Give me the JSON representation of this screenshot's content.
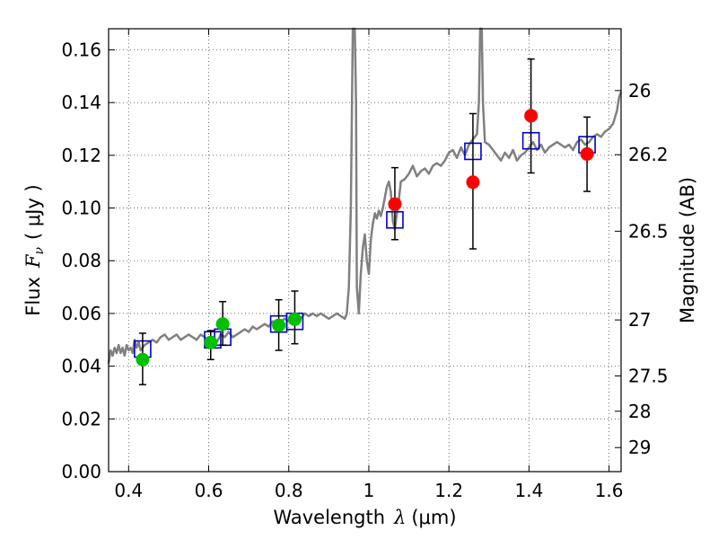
{
  "chart_data": {
    "type": "scatter",
    "xlabel_prefix": "Wavelength",
    "xlabel_symbol": "λ",
    "xlabel_unit": "(μm)",
    "ylabel_prefix": "Flux",
    "ylabel_symbol": "F",
    "ylabel_subscript": "ν",
    "ylabel_unit": "( μJy )",
    "y2label": "Magnitude (AB)",
    "xlim": [
      0.35,
      1.63
    ],
    "ylim": [
      0.0,
      0.168
    ],
    "grid": true,
    "xticks": [
      {
        "value": 0.4,
        "label": "0.4"
      },
      {
        "value": 0.6,
        "label": "0.6"
      },
      {
        "value": 0.8,
        "label": "0.8"
      },
      {
        "value": 1.0,
        "label": "1"
      },
      {
        "value": 1.2,
        "label": "1.2"
      },
      {
        "value": 1.4,
        "label": "1.4"
      },
      {
        "value": 1.6,
        "label": "1.6"
      }
    ],
    "yticks": [
      {
        "value": 0.0,
        "label": "0.00"
      },
      {
        "value": 0.02,
        "label": "0.02"
      },
      {
        "value": 0.04,
        "label": "0.04"
      },
      {
        "value": 0.06,
        "label": "0.06"
      },
      {
        "value": 0.08,
        "label": "0.08"
      },
      {
        "value": 0.1,
        "label": "0.10"
      },
      {
        "value": 0.12,
        "label": "0.12"
      },
      {
        "value": 0.14,
        "label": "0.14"
      },
      {
        "value": 0.16,
        "label": "0.16"
      }
    ],
    "mag_ticks": [
      {
        "label": "26",
        "mag": 26.0
      },
      {
        "label": "26.2",
        "mag": 26.2
      },
      {
        "label": "26.5",
        "mag": 26.5
      },
      {
        "label": "27",
        "mag": 27.0
      },
      {
        "label": "27.5",
        "mag": 27.5
      },
      {
        "label": "28",
        "mag": 28.0
      },
      {
        "label": "29",
        "mag": 29.0
      }
    ],
    "spectrum": {
      "color": "#808080",
      "x": [
        0.35,
        0.355,
        0.36,
        0.365,
        0.37,
        0.375,
        0.38,
        0.385,
        0.39,
        0.395,
        0.4,
        0.405,
        0.41,
        0.415,
        0.42,
        0.425,
        0.43,
        0.44,
        0.45,
        0.46,
        0.47,
        0.48,
        0.49,
        0.5,
        0.51,
        0.52,
        0.53,
        0.54,
        0.55,
        0.56,
        0.57,
        0.58,
        0.59,
        0.6,
        0.61,
        0.62,
        0.63,
        0.64,
        0.65,
        0.66,
        0.67,
        0.68,
        0.69,
        0.7,
        0.71,
        0.72,
        0.73,
        0.74,
        0.75,
        0.76,
        0.77,
        0.78,
        0.79,
        0.8,
        0.81,
        0.82,
        0.83,
        0.84,
        0.85,
        0.86,
        0.87,
        0.88,
        0.89,
        0.9,
        0.91,
        0.92,
        0.93,
        0.94,
        0.945,
        0.95,
        0.955,
        0.958,
        0.96,
        0.962,
        0.965,
        0.968,
        0.97,
        0.975,
        0.98,
        0.985,
        0.99,
        0.995,
        1.0,
        1.005,
        1.01,
        1.015,
        1.02,
        1.025,
        1.03,
        1.035,
        1.04,
        1.045,
        1.05,
        1.055,
        1.06,
        1.065,
        1.07,
        1.075,
        1.08,
        1.09,
        1.1,
        1.11,
        1.12,
        1.13,
        1.14,
        1.15,
        1.16,
        1.17,
        1.18,
        1.19,
        1.2,
        1.21,
        1.22,
        1.23,
        1.24,
        1.25,
        1.26,
        1.27,
        1.275,
        1.278,
        1.28,
        1.282,
        1.285,
        1.29,
        1.3,
        1.31,
        1.32,
        1.33,
        1.34,
        1.35,
        1.36,
        1.37,
        1.38,
        1.39,
        1.4,
        1.41,
        1.42,
        1.43,
        1.44,
        1.45,
        1.46,
        1.47,
        1.48,
        1.49,
        1.5,
        1.51,
        1.52,
        1.53,
        1.54,
        1.55,
        1.56,
        1.57,
        1.58,
        1.59,
        1.6,
        1.61,
        1.62,
        1.625,
        1.63
      ],
      "y": [
        0.041,
        0.046,
        0.044,
        0.047,
        0.045,
        0.048,
        0.045,
        0.047,
        0.044,
        0.048,
        0.046,
        0.047,
        0.045,
        0.05,
        0.047,
        0.049,
        0.046,
        0.048,
        0.049,
        0.05,
        0.049,
        0.051,
        0.052,
        0.05,
        0.051,
        0.052,
        0.05,
        0.051,
        0.052,
        0.051,
        0.05,
        0.052,
        0.051,
        0.05,
        0.051,
        0.049,
        0.052,
        0.051,
        0.053,
        0.051,
        0.052,
        0.053,
        0.054,
        0.053,
        0.055,
        0.054,
        0.055,
        0.056,
        0.055,
        0.057,
        0.056,
        0.057,
        0.058,
        0.057,
        0.058,
        0.059,
        0.058,
        0.06,
        0.059,
        0.06,
        0.059,
        0.06,
        0.059,
        0.058,
        0.059,
        0.06,
        0.059,
        0.058,
        0.06,
        0.07,
        0.1,
        0.14,
        0.168,
        0.168,
        0.168,
        0.14,
        0.07,
        0.06,
        0.075,
        0.085,
        0.09,
        0.08,
        0.075,
        0.088,
        0.094,
        0.098,
        0.096,
        0.099,
        0.097,
        0.1,
        0.104,
        0.108,
        0.11,
        0.106,
        0.095,
        0.092,
        0.098,
        0.103,
        0.11,
        0.111,
        0.113,
        0.116,
        0.112,
        0.114,
        0.115,
        0.113,
        0.116,
        0.117,
        0.116,
        0.118,
        0.121,
        0.122,
        0.119,
        0.123,
        0.12,
        0.124,
        0.126,
        0.128,
        0.14,
        0.168,
        0.168,
        0.168,
        0.14,
        0.125,
        0.124,
        0.122,
        0.12,
        0.118,
        0.121,
        0.119,
        0.122,
        0.118,
        0.12,
        0.121,
        0.123,
        0.125,
        0.122,
        0.124,
        0.121,
        0.123,
        0.124,
        0.125,
        0.124,
        0.123,
        0.124,
        0.122,
        0.125,
        0.126,
        0.124,
        0.125,
        0.127,
        0.128,
        0.127,
        0.129,
        0.13,
        0.132,
        0.137,
        0.142,
        0.144
      ]
    },
    "model_points": {
      "name": "",
      "color": "#0000cc",
      "x": [
        0.435,
        0.61,
        0.635,
        0.775,
        0.815,
        1.065,
        1.26,
        1.405,
        1.545
      ],
      "y": [
        0.0465,
        0.05,
        0.051,
        0.056,
        0.057,
        0.0955,
        0.1215,
        0.1255,
        0.124
      ]
    },
    "green_points": {
      "color": "#00c000",
      "x": [
        0.435,
        0.605,
        0.635,
        0.775,
        0.815
      ],
      "y": [
        0.0425,
        0.049,
        0.056,
        0.0555,
        0.0578
      ],
      "err_lo": [
        0.033,
        0.0425,
        0.048,
        0.046,
        0.0485
      ],
      "err_hi": [
        0.0525,
        0.0535,
        0.0645,
        0.0652,
        0.0685
      ]
    },
    "red_points": {
      "color": "#ff0000",
      "x": [
        1.065,
        1.26,
        1.405,
        1.545
      ],
      "y": [
        0.1015,
        0.1098,
        0.135,
        0.1205
      ],
      "err_lo": [
        0.088,
        0.0845,
        0.1133,
        0.1063
      ],
      "err_hi": [
        0.1153,
        0.1358,
        0.1565,
        0.1345
      ]
    }
  }
}
